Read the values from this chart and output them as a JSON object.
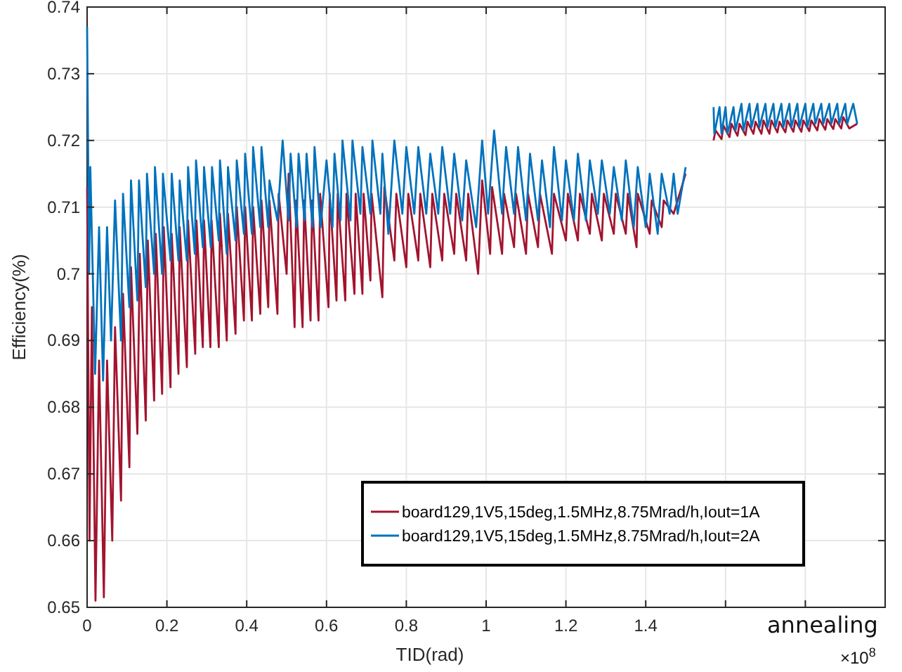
{
  "chart_data": {
    "type": "line",
    "xlabel": "TID(rad)",
    "ylabel": "Efficiency(%)",
    "xlim": [
      0,
      2
    ],
    "ylim": [
      0.65,
      0.74
    ],
    "xticks": [
      0,
      0.2,
      0.4,
      0.6,
      0.8,
      1,
      1.2,
      1.4,
      {
        "value": 1.6,
        "label": null
      },
      {
        "value": 1.8,
        "label": null
      }
    ],
    "yticks": [
      0.65,
      0.66,
      0.67,
      0.68,
      0.69,
      0.7,
      0.71,
      0.72,
      0.73,
      0.74
    ],
    "grid": true,
    "legend": "bottom right",
    "line_style": "solid",
    "marker": "none",
    "annotations": [
      "annealing",
      "×10$^{8}$"
    ],
    "series": [
      {
        "name": "board129,1V5,15deg,1.5MHz,8.75Mrad/h,Iout=1A",
        "color": "#a2142f",
        "x": [
          0,
          0.006,
          0.012,
          0.021,
          0.03,
          0.042,
          0.05,
          0.063,
          0.07,
          0.085,
          0.09,
          0.106,
          0.11,
          0.126,
          0.132,
          0.147,
          0.152,
          0.168,
          0.172,
          0.188,
          0.192,
          0.209,
          0.212,
          0.229,
          0.232,
          0.25,
          0.253,
          0.271,
          0.274,
          0.29,
          0.293,
          0.309,
          0.312,
          0.33,
          0.333,
          0.35,
          0.353,
          0.372,
          0.375,
          0.393,
          0.396,
          0.413,
          0.416,
          0.434,
          0.437,
          0.454,
          0.457,
          0.477,
          0.48,
          0.5,
          0.505,
          0.52,
          0.524,
          0.54,
          0.544,
          0.56,
          0.564,
          0.58,
          0.584,
          0.605,
          0.608,
          0.625,
          0.628,
          0.647,
          0.65,
          0.67,
          0.673,
          0.69,
          0.693,
          0.71,
          0.713,
          0.74,
          0.745,
          0.77,
          0.775,
          0.8,
          0.805,
          0.83,
          0.835,
          0.86,
          0.865,
          0.89,
          0.895,
          0.92,
          0.925,
          0.95,
          0.955,
          0.98,
          0.99,
          1.01,
          1.015,
          1.04,
          1.045,
          1.07,
          1.075,
          1.1,
          1.105,
          1.13,
          1.135,
          1.165,
          1.17,
          1.2,
          1.205,
          1.23,
          1.235,
          1.26,
          1.265,
          1.29,
          1.295,
          1.32,
          1.325,
          1.35,
          1.355,
          1.377,
          1.38,
          1.41,
          1.415,
          1.44,
          1.445,
          1.47,
          1.5,
          1.53,
          1.57,
          1.575,
          1.59,
          1.595,
          1.61,
          1.615,
          1.63,
          1.635,
          1.65,
          1.655,
          1.67,
          1.675,
          1.69,
          1.695,
          1.71,
          1.715,
          1.73,
          1.735,
          1.75,
          1.755,
          1.77,
          1.775,
          1.79,
          1.795,
          1.81,
          1.815,
          1.83,
          1.835,
          1.85,
          1.855,
          1.87,
          1.875,
          1.89,
          1.895,
          1.91,
          1.93
        ],
        "values": [
          0.713,
          0.66,
          0.695,
          0.651,
          0.687,
          0.6515,
          0.687,
          0.66,
          0.692,
          0.666,
          0.697,
          0.671,
          0.701,
          0.676,
          0.703,
          0.678,
          0.705,
          0.681,
          0.706,
          0.682,
          0.707,
          0.683,
          0.706,
          0.685,
          0.707,
          0.686,
          0.708,
          0.688,
          0.708,
          0.689,
          0.708,
          0.689,
          0.708,
          0.689,
          0.709,
          0.69,
          0.709,
          0.691,
          0.71,
          0.693,
          0.71,
          0.693,
          0.71,
          0.694,
          0.711,
          0.695,
          0.711,
          0.694,
          0.712,
          0.7,
          0.715,
          0.692,
          0.711,
          0.692,
          0.711,
          0.693,
          0.711,
          0.693,
          0.712,
          0.695,
          0.712,
          0.696,
          0.712,
          0.696,
          0.712,
          0.697,
          0.712,
          0.697,
          0.712,
          0.699,
          0.712,
          0.6965,
          0.713,
          0.702,
          0.712,
          0.701,
          0.712,
          0.702,
          0.712,
          0.701,
          0.712,
          0.702,
          0.712,
          0.703,
          0.712,
          0.702,
          0.712,
          0.7,
          0.714,
          0.703,
          0.713,
          0.703,
          0.712,
          0.704,
          0.712,
          0.703,
          0.712,
          0.704,
          0.712,
          0.703,
          0.712,
          0.705,
          0.712,
          0.705,
          0.712,
          0.706,
          0.712,
          0.705,
          0.712,
          0.706,
          0.712,
          0.706,
          0.712,
          0.704,
          0.712,
          0.706,
          0.711,
          0.707,
          0.711,
          0.709,
          0.715,
          null,
          0.72,
          0.7215,
          0.7202,
          0.7222,
          0.7205,
          0.7225,
          0.7207,
          0.7225,
          0.7208,
          0.7228,
          0.721,
          0.7228,
          0.721,
          0.723,
          0.721,
          0.723,
          0.7212,
          0.7228,
          0.7212,
          0.723,
          0.7213,
          0.723,
          0.7213,
          0.723,
          0.7214,
          0.723,
          0.7215,
          0.7232,
          0.7216,
          0.7232,
          0.7217,
          0.7232,
          0.7218,
          0.7235,
          0.7218,
          0.7225
        ]
      },
      {
        "name": "board129,1V5,15deg,1.5MHz,8.75Mrad/h,Iout=2A",
        "color": "#0072bd",
        "x": [
          0,
          0.005,
          0.008,
          0.02,
          0.03,
          0.04,
          0.05,
          0.06,
          0.07,
          0.085,
          0.09,
          0.106,
          0.11,
          0.126,
          0.13,
          0.147,
          0.15,
          0.168,
          0.17,
          0.188,
          0.19,
          0.209,
          0.212,
          0.229,
          0.232,
          0.25,
          0.253,
          0.27,
          0.273,
          0.29,
          0.293,
          0.31,
          0.313,
          0.33,
          0.333,
          0.35,
          0.353,
          0.372,
          0.375,
          0.393,
          0.396,
          0.413,
          0.416,
          0.434,
          0.437,
          0.454,
          0.457,
          0.477,
          0.49,
          0.505,
          0.51,
          0.525,
          0.53,
          0.545,
          0.55,
          0.565,
          0.57,
          0.585,
          0.6,
          0.615,
          0.62,
          0.635,
          0.64,
          0.66,
          0.665,
          0.685,
          0.69,
          0.71,
          0.715,
          0.735,
          0.74,
          0.755,
          0.77,
          0.79,
          0.8,
          0.82,
          0.83,
          0.85,
          0.86,
          0.88,
          0.89,
          0.91,
          0.92,
          0.94,
          0.95,
          0.975,
          0.99,
          1.005,
          1.02,
          1.04,
          1.05,
          1.07,
          1.08,
          1.1,
          1.11,
          1.13,
          1.14,
          1.16,
          1.17,
          1.19,
          1.2,
          1.22,
          1.23,
          1.25,
          1.26,
          1.28,
          1.29,
          1.31,
          1.32,
          1.34,
          1.35,
          1.37,
          1.38,
          1.4,
          1.41,
          1.43,
          1.44,
          1.46,
          1.47,
          1.48,
          1.5,
          1.53,
          1.57,
          1.572,
          1.585,
          1.59,
          1.6,
          1.605,
          1.62,
          1.625,
          1.64,
          1.645,
          1.66,
          1.665,
          1.68,
          1.685,
          1.7,
          1.705,
          1.72,
          1.725,
          1.74,
          1.745,
          1.76,
          1.765,
          1.78,
          1.785,
          1.8,
          1.805,
          1.82,
          1.825,
          1.84,
          1.845,
          1.86,
          1.865,
          1.88,
          1.885,
          1.9,
          1.905,
          1.92,
          1.93
        ],
        "values": [
          0.737,
          0.7,
          0.716,
          0.685,
          0.707,
          0.684,
          0.707,
          0.69,
          0.711,
          0.69,
          0.712,
          0.695,
          0.714,
          0.696,
          0.714,
          0.698,
          0.715,
          0.7,
          0.716,
          0.7,
          0.715,
          0.702,
          0.715,
          0.702,
          0.714,
          0.702,
          0.716,
          0.703,
          0.717,
          0.704,
          0.716,
          0.704,
          0.716,
          0.705,
          0.717,
          0.703,
          0.716,
          0.705,
          0.717,
          0.706,
          0.718,
          0.706,
          0.719,
          0.707,
          0.719,
          0.707,
          0.714,
          0.708,
          0.72,
          0.708,
          0.718,
          0.707,
          0.718,
          0.708,
          0.718,
          0.707,
          0.719,
          0.707,
          0.717,
          0.707,
          0.718,
          0.708,
          0.72,
          0.708,
          0.72,
          0.709,
          0.719,
          0.709,
          0.72,
          0.709,
          0.718,
          0.706,
          0.72,
          0.709,
          0.719,
          0.709,
          0.719,
          0.709,
          0.718,
          0.709,
          0.719,
          0.709,
          0.718,
          0.708,
          0.717,
          0.707,
          0.72,
          0.709,
          0.7215,
          0.709,
          0.719,
          0.709,
          0.719,
          0.708,
          0.718,
          0.708,
          0.717,
          0.707,
          0.719,
          0.708,
          0.717,
          0.708,
          0.718,
          0.708,
          0.717,
          0.709,
          0.717,
          0.709,
          0.716,
          0.708,
          0.717,
          0.707,
          0.716,
          0.707,
          0.715,
          0.706,
          0.715,
          0.709,
          0.715,
          0.709,
          0.716,
          null,
          0.725,
          0.721,
          0.725,
          0.721,
          0.725,
          0.721,
          0.725,
          0.7215,
          0.7255,
          0.7215,
          0.7255,
          0.722,
          0.7255,
          0.722,
          0.7255,
          0.722,
          0.7255,
          0.722,
          0.7255,
          0.722,
          0.7255,
          0.722,
          0.7255,
          0.722,
          0.7255,
          0.722,
          0.7255,
          0.7225,
          0.7255,
          0.7225,
          0.7255,
          0.7225,
          0.7255,
          0.7225,
          0.7255,
          0.7225,
          0.7255,
          0.7225
        ]
      }
    ]
  }
}
